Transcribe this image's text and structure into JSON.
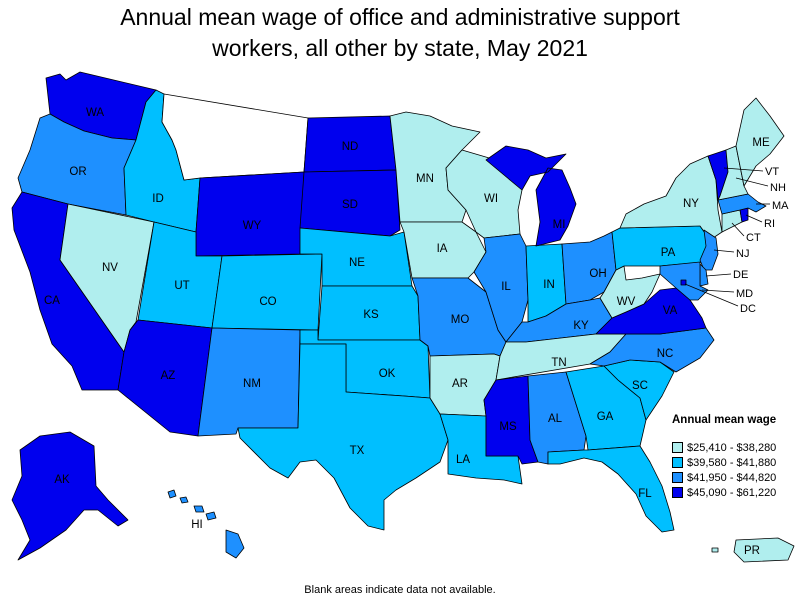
{
  "title_line1": "Annual mean wage of office and administrative support",
  "title_line2": "workers, all other by state, May 2021",
  "legend": {
    "title": "Annual mean wage",
    "bins": [
      {
        "label": "$25,410 - $38,280",
        "color": "#b0eeee"
      },
      {
        "label": "$39,580 - $41,880",
        "color": "#00bfff"
      },
      {
        "label": "$41,950 - $44,820",
        "color": "#1e90ff"
      },
      {
        "label": "$45,090 - $61,220",
        "color": "#0000ee"
      }
    ]
  },
  "no_data_color": "#ffffff",
  "states": {
    "WA": {
      "bin": 3
    },
    "OR": {
      "bin": 2
    },
    "CA": {
      "bin": 3
    },
    "ID": {
      "bin": 1
    },
    "NV": {
      "bin": 0
    },
    "MT": {
      "bin": null
    },
    "WY": {
      "bin": 3
    },
    "UT": {
      "bin": 1
    },
    "AZ": {
      "bin": 3
    },
    "CO": {
      "bin": 1
    },
    "NM": {
      "bin": 2
    },
    "ND": {
      "bin": 3
    },
    "SD": {
      "bin": 3
    },
    "NE": {
      "bin": 1
    },
    "KS": {
      "bin": 1
    },
    "OK": {
      "bin": 1
    },
    "TX": {
      "bin": 1
    },
    "MN": {
      "bin": 0
    },
    "IA": {
      "bin": 0
    },
    "MO": {
      "bin": 2
    },
    "AR": {
      "bin": 0
    },
    "LA": {
      "bin": 1
    },
    "WI": {
      "bin": 0
    },
    "IL": {
      "bin": 2
    },
    "MI": {
      "bin": 3
    },
    "IN": {
      "bin": 1
    },
    "OH": {
      "bin": 2
    },
    "KY": {
      "bin": 2
    },
    "TN": {
      "bin": 0
    },
    "MS": {
      "bin": 3
    },
    "AL": {
      "bin": 2
    },
    "GA": {
      "bin": 1
    },
    "FL": {
      "bin": 1
    },
    "SC": {
      "bin": 1
    },
    "NC": {
      "bin": 2
    },
    "VA": {
      "bin": 3
    },
    "WV": {
      "bin": 0
    },
    "PA": {
      "bin": 1
    },
    "NY": {
      "bin": 0
    },
    "ME": {
      "bin": 0
    },
    "VT": {
      "bin": 3
    },
    "NH": {
      "bin": 0
    },
    "MA": {
      "bin": 2
    },
    "RI": {
      "bin": 3
    },
    "CT": {
      "bin": 0
    },
    "NJ": {
      "bin": 2
    },
    "DE": {
      "bin": 2
    },
    "MD": {
      "bin": 2
    },
    "DC": {
      "bin": 3
    },
    "AK": {
      "bin": 3
    },
    "HI": {
      "bin": 2
    },
    "PR": {
      "bin": 0
    }
  },
  "note": "Blank areas indicate data not available."
}
